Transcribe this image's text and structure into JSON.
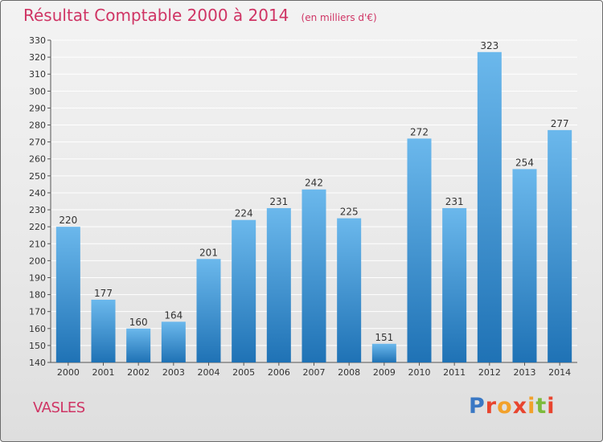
{
  "chart_data": {
    "type": "bar",
    "title": "Résultat Comptable 2000 à 2014",
    "subtitle": "(en milliers d'€)",
    "categories": [
      "2000",
      "2001",
      "2002",
      "2003",
      "2004",
      "2005",
      "2006",
      "2007",
      "2008",
      "2009",
      "2010",
      "2011",
      "2012",
      "2013",
      "2014"
    ],
    "values": [
      220,
      177,
      160,
      164,
      201,
      224,
      231,
      242,
      225,
      151,
      272,
      231,
      323,
      254,
      277
    ],
    "ylim": [
      140,
      330
    ],
    "ytick_step": 10,
    "grid": true,
    "colors": {
      "bar_top": "#6bb8ec",
      "bar_bottom": "#1f72b5",
      "grid": "#ffffff",
      "title": "#cf3464"
    }
  },
  "commune": "VASLES",
  "logo": {
    "text": "Proxiti",
    "colors": [
      "#3a78c4",
      "#e8452f",
      "#f2a12b",
      "#e8452f",
      "#f2a12b",
      "#7dbb3c",
      "#e8452f"
    ]
  }
}
